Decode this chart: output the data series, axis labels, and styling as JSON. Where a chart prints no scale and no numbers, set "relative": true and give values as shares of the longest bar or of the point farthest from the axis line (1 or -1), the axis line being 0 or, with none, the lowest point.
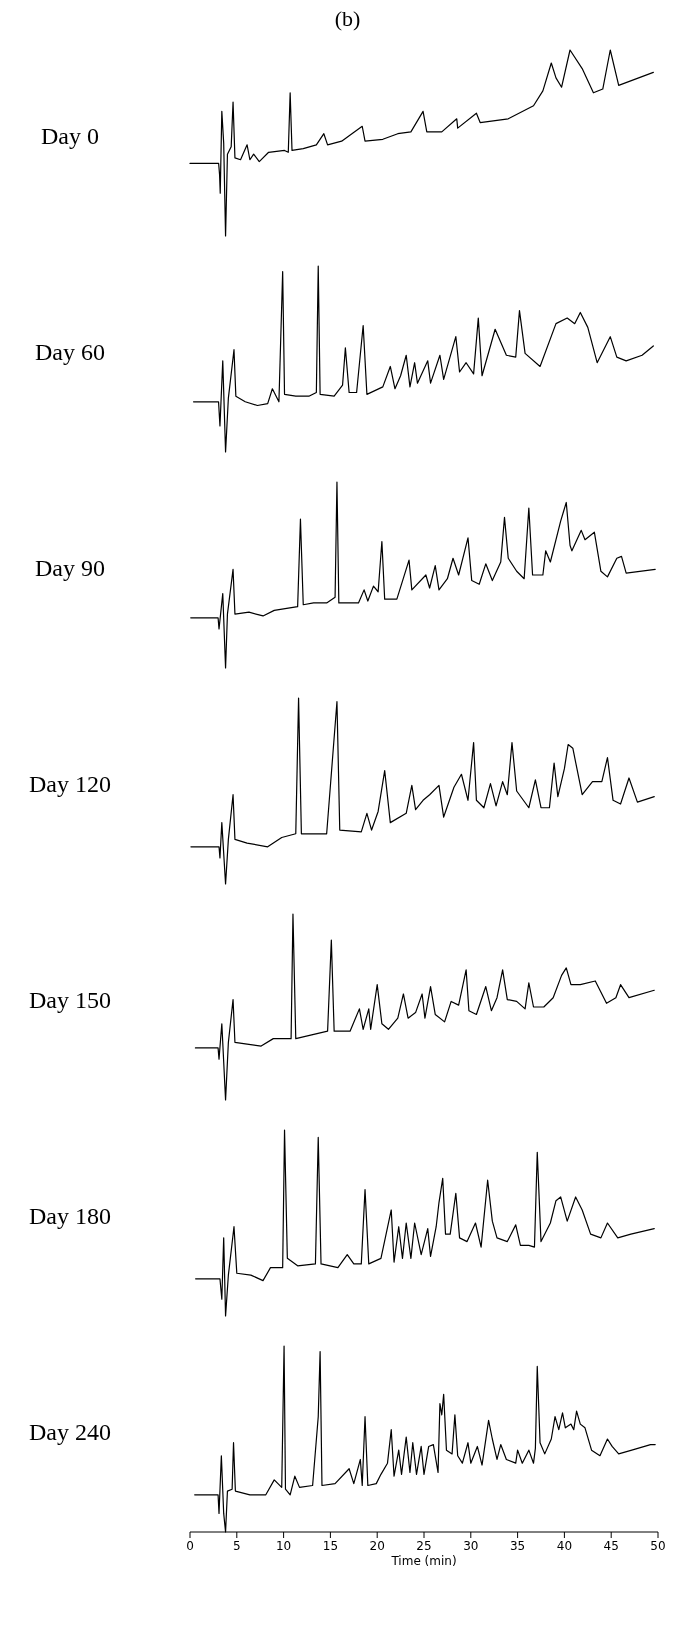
{
  "chart_data": [
    {
      "type": "line",
      "title": "(b)",
      "ylabel": "Day 0",
      "relative": true,
      "color": "#000000",
      "xlim": [
        0,
        50
      ],
      "tick_labels": false,
      "x": [
        0.0,
        3.06,
        3.16,
        3.23,
        3.4,
        3.6,
        3.8,
        4.0,
        4.4,
        4.6,
        4.8,
        5.4,
        6.1,
        6.4,
        6.8,
        7.4,
        8.4,
        10.1,
        10.5,
        10.7,
        10.9,
        12.1,
        13.5,
        14.3,
        14.7,
        16.2,
        18.4,
        18.7,
        20.6,
        22.2,
        23.6,
        24.9,
        25.3,
        26.9,
        28.5,
        28.6,
        30.6,
        31.0,
        34.0,
        36.7,
        37.7,
        38.6,
        39.1,
        39.7,
        40.6,
        41.9,
        43.1,
        44.1,
        44.9,
        45.8,
        49.5
      ],
      "values": [
        0.39,
        0.39,
        0.33,
        0.23,
        0.67,
        0.5,
        0,
        0.44,
        0.48,
        0.72,
        0.42,
        0.41,
        0.49,
        0.41,
        0.44,
        0.4,
        0.45,
        0.46,
        0.45,
        0.77,
        0.46,
        0.47,
        0.49,
        0.55,
        0.49,
        0.51,
        0.59,
        0.51,
        0.52,
        0.55,
        0.56,
        0.67,
        0.56,
        0.56,
        0.63,
        0.58,
        0.66,
        0.61,
        0.63,
        0.7,
        0.78,
        0.93,
        0.85,
        0.8,
        1.0,
        0.9,
        0.77,
        0.79,
        1.0,
        0.81,
        0.88
      ]
    },
    {
      "type": "line",
      "ylabel": "Day 60",
      "relative": true,
      "color": "#000000",
      "xlim": [
        0,
        50
      ],
      "tick_labels": false,
      "x": [
        0.38,
        3.05,
        3.2,
        3.5,
        3.8,
        4.1,
        4.7,
        4.9,
        5.9,
        7.2,
        8.3,
        8.8,
        9.5,
        9.9,
        10.1,
        11.3,
        12.7,
        13.5,
        13.7,
        13.9,
        15.4,
        16.3,
        16.6,
        17.0,
        17.8,
        18.5,
        18.9,
        20.6,
        21.4,
        21.9,
        22.5,
        23.1,
        23.5,
        24.0,
        24.3,
        25.4,
        25.7,
        26.7,
        27.1,
        28.4,
        28.8,
        29.5,
        30.3,
        30.8,
        31.2,
        32.6,
        33.8,
        34.8,
        35.2,
        35.8,
        37.4,
        39.1,
        40.3,
        41.1,
        41.7,
        42.5,
        43.5,
        44.9,
        45.6,
        46.6,
        48.3,
        49.5
      ],
      "values": [
        0.27,
        0.27,
        0.14,
        0.49,
        0,
        0.29,
        0.55,
        0.3,
        0.27,
        0.25,
        0.26,
        0.34,
        0.27,
        0.97,
        0.31,
        0.3,
        0.3,
        0.32,
        1.0,
        0.31,
        0.3,
        0.36,
        0.56,
        0.32,
        0.32,
        0.68,
        0.31,
        0.35,
        0.46,
        0.34,
        0.41,
        0.52,
        0.35,
        0.48,
        0.37,
        0.49,
        0.37,
        0.52,
        0.39,
        0.62,
        0.43,
        0.48,
        0.42,
        0.72,
        0.41,
        0.66,
        0.52,
        0.51,
        0.76,
        0.53,
        0.46,
        0.69,
        0.72,
        0.69,
        0.75,
        0.67,
        0.48,
        0.62,
        0.51,
        0.49,
        0.52,
        0.57
      ]
    },
    {
      "type": "line",
      "ylabel": "Day 90",
      "relative": true,
      "color": "#000000",
      "xlim": [
        0,
        50
      ],
      "tick_labels": false,
      "x": [
        0.08,
        3.0,
        3.1,
        3.5,
        3.8,
        4.0,
        4.6,
        4.8,
        6.3,
        7.8,
        9.0,
        11.5,
        11.8,
        12.1,
        13.2,
        14.6,
        15.5,
        15.7,
        15.9,
        18.0,
        18.6,
        19.0,
        19.6,
        20.1,
        20.5,
        20.8,
        22.1,
        23.4,
        23.7,
        25.2,
        25.6,
        26.2,
        26.6,
        27.5,
        28.1,
        28.7,
        29.7,
        30.1,
        30.9,
        31.6,
        32.3,
        33.2,
        33.6,
        34.0,
        34.9,
        35.7,
        36.2,
        36.6,
        37.7,
        38.0,
        38.5,
        39.6,
        39.9,
        40.2,
        40.6,
        40.8,
        41.8,
        42.2,
        43.2,
        43.9,
        44.6,
        45.6,
        46.1,
        46.6,
        49.7
      ],
      "values": [
        0.27,
        0.27,
        0.21,
        0.4,
        0,
        0.29,
        0.53,
        0.29,
        0.3,
        0.28,
        0.31,
        0.33,
        0.8,
        0.34,
        0.35,
        0.35,
        0.38,
        1.0,
        0.35,
        0.35,
        0.42,
        0.36,
        0.44,
        0.41,
        0.68,
        0.37,
        0.37,
        0.58,
        0.42,
        0.5,
        0.43,
        0.55,
        0.42,
        0.48,
        0.59,
        0.5,
        0.7,
        0.47,
        0.45,
        0.56,
        0.47,
        0.57,
        0.81,
        0.59,
        0.52,
        0.48,
        0.86,
        0.5,
        0.5,
        0.63,
        0.57,
        0.79,
        0.84,
        0.89,
        0.66,
        0.63,
        0.74,
        0.69,
        0.73,
        0.52,
        0.49,
        0.59,
        0.6,
        0.51,
        0.53
      ]
    },
    {
      "type": "line",
      "ylabel": "Day 120",
      "relative": true,
      "color": "#000000",
      "xlim": [
        0,
        50
      ],
      "tick_labels": false,
      "x": [
        0.1,
        3.1,
        3.2,
        3.4,
        3.8,
        4.1,
        4.6,
        4.8,
        6.1,
        8.3,
        9.8,
        11.3,
        11.6,
        11.9,
        13.5,
        14.6,
        15.7,
        16.0,
        18.3,
        18.9,
        19.4,
        20.1,
        20.8,
        21.4,
        23.1,
        23.7,
        24.1,
        24.9,
        25.6,
        26.6,
        27.1,
        28.2,
        29.0,
        29.7,
        30.3,
        30.6,
        31.4,
        32.1,
        32.7,
        33.4,
        33.9,
        34.4,
        34.9,
        36.2,
        36.9,
        37.5,
        38.4,
        38.9,
        39.3,
        40.0,
        40.4,
        40.9,
        41.9,
        43.0,
        44.0,
        44.6,
        45.2,
        46.0,
        46.9,
        47.8,
        49.6
      ],
      "values": [
        0.2,
        0.2,
        0.14,
        0.33,
        0,
        0.24,
        0.48,
        0.24,
        0.22,
        0.2,
        0.25,
        0.27,
        1.0,
        0.27,
        0.27,
        0.27,
        0.98,
        0.29,
        0.28,
        0.38,
        0.29,
        0.39,
        0.61,
        0.33,
        0.38,
        0.53,
        0.4,
        0.45,
        0.48,
        0.53,
        0.36,
        0.52,
        0.59,
        0.45,
        0.76,
        0.45,
        0.41,
        0.54,
        0.42,
        0.55,
        0.48,
        0.76,
        0.5,
        0.41,
        0.56,
        0.41,
        0.41,
        0.65,
        0.47,
        0.62,
        0.75,
        0.73,
        0.48,
        0.55,
        0.55,
        0.68,
        0.45,
        0.43,
        0.57,
        0.44,
        0.47
      ]
    },
    {
      "type": "line",
      "ylabel": "Day 150",
      "relative": true,
      "color": "#000000",
      "xlim": [
        0,
        50
      ],
      "tick_labels": false,
      "x": [
        0.58,
        3.0,
        3.1,
        3.4,
        3.8,
        4.1,
        4.6,
        4.8,
        6.1,
        7.6,
        8.9,
        10.8,
        11.0,
        11.3,
        13.0,
        14.7,
        15.1,
        15.4,
        17.1,
        18.1,
        18.5,
        19.1,
        19.3,
        20.0,
        20.5,
        21.2,
        22.2,
        22.8,
        23.3,
        24.1,
        24.8,
        25.1,
        25.7,
        26.2,
        27.2,
        27.9,
        28.7,
        29.5,
        29.8,
        30.6,
        31.6,
        32.2,
        32.8,
        33.4,
        33.9,
        34.9,
        35.8,
        36.2,
        36.7,
        37.8,
        38.8,
        39.7,
        40.2,
        40.7,
        41.7,
        43.3,
        44.5,
        45.5,
        46.0,
        46.9,
        49.6
      ],
      "values": [
        0.28,
        0.28,
        0.22,
        0.41,
        0,
        0.31,
        0.54,
        0.31,
        0.3,
        0.29,
        0.33,
        0.33,
        1.0,
        0.33,
        0.35,
        0.37,
        0.86,
        0.37,
        0.37,
        0.49,
        0.38,
        0.49,
        0.38,
        0.62,
        0.41,
        0.38,
        0.44,
        0.57,
        0.44,
        0.47,
        0.57,
        0.44,
        0.61,
        0.46,
        0.42,
        0.53,
        0.51,
        0.7,
        0.48,
        0.46,
        0.61,
        0.48,
        0.55,
        0.7,
        0.54,
        0.53,
        0.49,
        0.63,
        0.5,
        0.5,
        0.55,
        0.67,
        0.71,
        0.62,
        0.62,
        0.64,
        0.52,
        0.55,
        0.62,
        0.55,
        0.59
      ]
    },
    {
      "type": "line",
      "ylabel": "Day 180",
      "relative": true,
      "color": "#000000",
      "xlim": [
        0,
        50
      ],
      "tick_labels": false,
      "x": [
        0.6,
        3.2,
        3.4,
        3.6,
        3.8,
        4.1,
        4.7,
        5.0,
        6.5,
        7.8,
        8.6,
        9.9,
        10.1,
        10.4,
        11.5,
        13.4,
        13.7,
        14.0,
        15.8,
        16.8,
        17.5,
        18.3,
        18.7,
        19.1,
        20.4,
        21.5,
        21.8,
        22.3,
        22.7,
        23.1,
        23.6,
        24.0,
        24.7,
        25.4,
        25.7,
        26.3,
        26.6,
        27.0,
        27.3,
        27.8,
        28.4,
        28.8,
        29.6,
        30.5,
        31.1,
        31.8,
        32.3,
        32.8,
        33.9,
        34.8,
        35.3,
        36.2,
        36.8,
        37.1,
        37.5,
        38.5,
        39.1,
        39.6,
        40.3,
        41.2,
        41.9,
        42.8,
        43.9,
        44.6,
        45.7,
        47.1,
        49.6
      ],
      "values": [
        0.2,
        0.2,
        0.09,
        0.42,
        0,
        0.22,
        0.48,
        0.23,
        0.22,
        0.19,
        0.26,
        0.26,
        1.0,
        0.31,
        0.27,
        0.28,
        0.96,
        0.28,
        0.26,
        0.33,
        0.28,
        0.28,
        0.68,
        0.28,
        0.31,
        0.57,
        0.29,
        0.48,
        0.31,
        0.5,
        0.31,
        0.5,
        0.33,
        0.47,
        0.32,
        0.48,
        0.61,
        0.74,
        0.44,
        0.44,
        0.66,
        0.42,
        0.4,
        0.5,
        0.37,
        0.73,
        0.51,
        0.42,
        0.4,
        0.49,
        0.38,
        0.38,
        0.37,
        0.88,
        0.4,
        0.5,
        0.62,
        0.64,
        0.51,
        0.64,
        0.57,
        0.44,
        0.42,
        0.5,
        0.42,
        0.44,
        0.47
      ]
    },
    {
      "type": "line",
      "ylabel": "Day 240",
      "xlabel": "Time (min)",
      "relative": true,
      "color": "#000000",
      "xlim": [
        0,
        50
      ],
      "xticks": [
        0,
        5,
        10,
        15,
        20,
        25,
        30,
        35,
        40,
        45,
        50
      ],
      "x": [
        0.5,
        3.0,
        3.1,
        3.35,
        3.6,
        3.8,
        4.0,
        4.5,
        4.65,
        4.85,
        6.4,
        8.1,
        9.0,
        9.8,
        10.05,
        10.2,
        10.7,
        11.2,
        11.7,
        13.1,
        13.7,
        13.9,
        14.1,
        15.5,
        17.0,
        17.5,
        18.2,
        18.4,
        18.7,
        19.0,
        19.9,
        20.4,
        21.1,
        21.5,
        21.8,
        22.3,
        22.6,
        23.1,
        23.5,
        23.8,
        24.2,
        24.7,
        25.0,
        25.5,
        26.0,
        26.5,
        26.7,
        26.9,
        27.1,
        27.4,
        28.0,
        28.3,
        28.6,
        29.1,
        29.7,
        30.0,
        30.7,
        31.2,
        31.9,
        32.3,
        32.8,
        33.2,
        33.8,
        34.8,
        35.0,
        35.5,
        36.2,
        36.7,
        36.9,
        37.1,
        37.4,
        37.9,
        38.6,
        39.0,
        39.4,
        39.8,
        40.1,
        40.7,
        41.0,
        41.3,
        41.7,
        42.2,
        42.9,
        43.8,
        44.6,
        45.1,
        45.8,
        47.2,
        49.2,
        49.7
      ],
      "values": [
        0.2,
        0.2,
        0.1,
        0.41,
        0.1,
        0,
        0.22,
        0.23,
        0.48,
        0.22,
        0.2,
        0.2,
        0.28,
        0.24,
        1.0,
        0.23,
        0.2,
        0.3,
        0.24,
        0.25,
        0.62,
        0.97,
        0.25,
        0.26,
        0.34,
        0.26,
        0.39,
        0.25,
        0.62,
        0.25,
        0.26,
        0.31,
        0.37,
        0.55,
        0.3,
        0.44,
        0.31,
        0.51,
        0.32,
        0.48,
        0.31,
        0.46,
        0.31,
        0.46,
        0.47,
        0.32,
        0.69,
        0.63,
        0.74,
        0.44,
        0.42,
        0.63,
        0.41,
        0.37,
        0.48,
        0.37,
        0.46,
        0.36,
        0.6,
        0.5,
        0.39,
        0.47,
        0.39,
        0.37,
        0.44,
        0.37,
        0.44,
        0.37,
        0.45,
        0.89,
        0.48,
        0.42,
        0.5,
        0.62,
        0.55,
        0.64,
        0.56,
        0.58,
        0.55,
        0.65,
        0.58,
        0.56,
        0.44,
        0.41,
        0.5,
        0.46,
        0.42,
        0.44,
        0.47,
        0.47
      ]
    }
  ]
}
